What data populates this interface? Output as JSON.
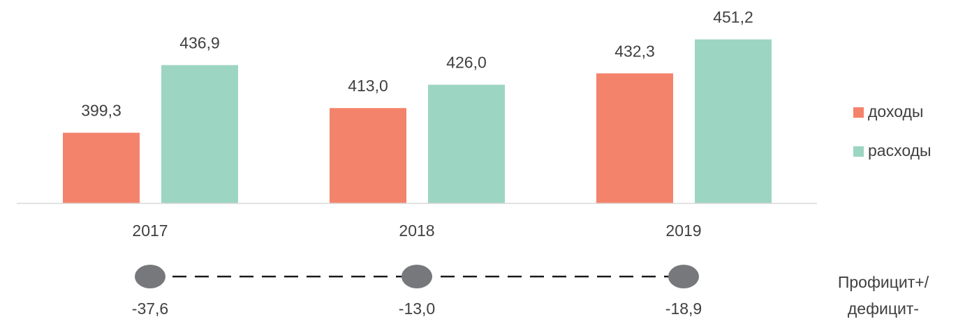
{
  "chart_data": [
    {
      "type": "bar",
      "categories": [
        "2017",
        "2018",
        "2019"
      ],
      "series": [
        {
          "name": "доходы",
          "color": "#f4836b",
          "values": [
            399.3,
            413.0,
            432.3
          ],
          "value_labels": [
            "399,3",
            "413,0",
            "432,3"
          ]
        },
        {
          "name": "расходы",
          "color": "#9dd5c3",
          "values": [
            436.9,
            426.0,
            451.2
          ],
          "value_labels": [
            "436,9",
            "426,0",
            "451,2"
          ]
        }
      ],
      "ylim": [
        360,
        470
      ],
      "legend": "right"
    },
    {
      "type": "dot",
      "name_lines": [
        "Профицит+/",
        "дефицит-"
      ],
      "color": "#77787b",
      "values": [
        -37.6,
        -13.0,
        -18.9
      ],
      "value_labels": [
        "-37,6",
        "-13,0",
        "-18,9"
      ]
    }
  ]
}
